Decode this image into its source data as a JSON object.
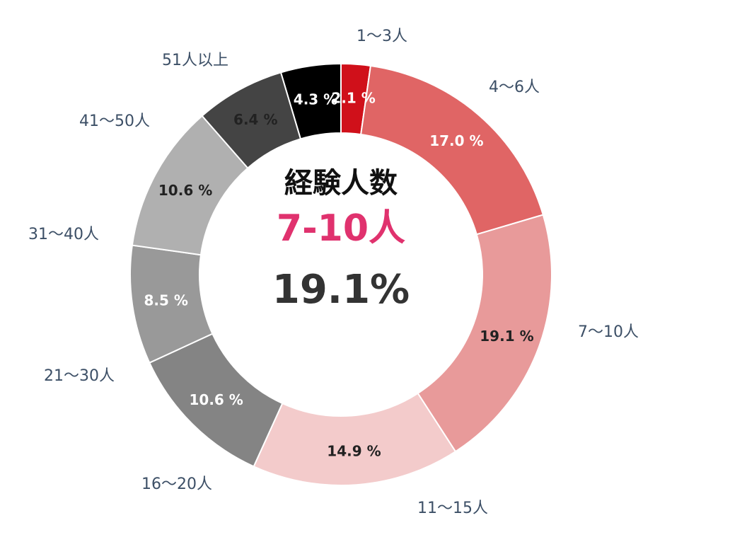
{
  "chart_data": {
    "type": "pie",
    "title": "",
    "categories": [
      "1〜3人",
      "4〜6人",
      "7〜10人",
      "11〜15人",
      "16〜20人",
      "21〜30人",
      "31〜40人",
      "41〜50人",
      "51人以上"
    ],
    "values": [
      2.1,
      17.0,
      19.1,
      14.9,
      10.6,
      8.5,
      10.6,
      6.4,
      4.3
    ],
    "value_labels": [
      "2.1 %",
      "17.0 %",
      "19.1 %",
      "14.9 %",
      "10.6 %",
      "8.5 %",
      "10.6 %",
      "6.4 %",
      "4.3 %"
    ],
    "colors": [
      "#d0101a",
      "#e06565",
      "#e89a9a",
      "#f3cbcb",
      "#848484",
      "#999999",
      "#b0b0b0",
      "#c2c2c2",
      "#444444"
    ],
    "segment_colors_wrap": [
      "#000000"
    ],
    "label_colors": [
      "#ffffff",
      "#ffffff",
      "#222222",
      "#222222",
      "#ffffff",
      "#ffffff",
      "#222222",
      "#222222",
      "#ffffff"
    ],
    "donut": true,
    "legend": "outside-labels"
  },
  "center": {
    "title": "経験人数",
    "category": "7-10人",
    "category_color": "#e0326e",
    "value": "19.1%"
  }
}
